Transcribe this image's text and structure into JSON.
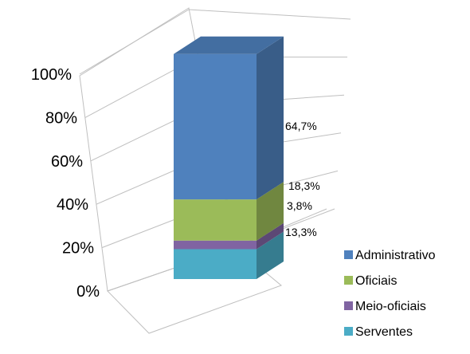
{
  "chart_data": {
    "type": "bar",
    "stacked": true,
    "three_d": true,
    "percent_stacked": true,
    "categories": [
      ""
    ],
    "series": [
      {
        "name": "Serventes",
        "values": [
          13.3
        ],
        "label": "13,3%",
        "color": "#4bacc6"
      },
      {
        "name": "Meio-oficiais",
        "values": [
          3.8
        ],
        "label": "3,8%",
        "color": "#8064a2"
      },
      {
        "name": "Oficiais",
        "values": [
          18.3
        ],
        "label": "18,3%",
        "color": "#9bbb59"
      },
      {
        "name": "Administrativo",
        "values": [
          64.7
        ],
        "label": "64,7%",
        "color": "#4f81bd"
      }
    ],
    "y_ticks": [
      "0%",
      "20%",
      "40%",
      "60%",
      "80%",
      "100%"
    ],
    "ylim": [
      0,
      100
    ],
    "grid": true,
    "legend_position": "right",
    "legend_order": [
      "Administrativo",
      "Oficiais",
      "Meio-oficiais",
      "Serventes"
    ]
  }
}
